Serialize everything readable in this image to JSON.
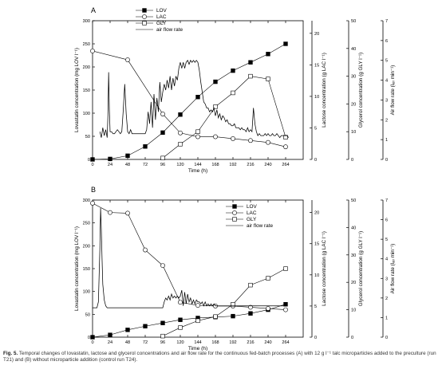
{
  "chart_data": [
    {
      "panel_label": "A",
      "type": "line",
      "xlabel": "Time (h)",
      "xlim": [
        0,
        288
      ],
      "xticks": [
        "0",
        "24",
        "48",
        "72",
        "96",
        "120",
        "144",
        "168",
        "192",
        "216",
        "240",
        "264"
      ],
      "ylabel_left": "Lovastatin concentration (mg LOV l⁻¹)",
      "ylim_left": [
        0,
        300
      ],
      "yticks_left": [
        "0",
        "50",
        "100",
        "150",
        "200",
        "250",
        "300"
      ],
      "ylabel_lac": "Lactose concentration (g LAC l⁻¹)",
      "ylim_lac": [
        0,
        22
      ],
      "yticks_lac": [
        "0",
        "5",
        "10",
        "15",
        "20"
      ],
      "ylabel_gly": "Glycerol concentration (g GLY l⁻¹)",
      "ylim_gly": [
        0,
        50
      ],
      "yticks_gly": [
        "0",
        "10",
        "20",
        "30",
        "40",
        "50"
      ],
      "ylabel_air": "Air flow rate (lₐᵢᵣ min⁻¹)",
      "ylim_air": [
        0,
        7
      ],
      "yticks_air": [
        "0",
        "1",
        "2",
        "3",
        "4",
        "5",
        "6",
        "7"
      ],
      "legend_position": "top-center",
      "series": [
        {
          "name": "LOV",
          "axis": "left",
          "marker": "filled-square",
          "x": [
            0,
            24,
            48,
            72,
            96,
            120,
            144,
            168,
            192,
            216,
            240,
            264
          ],
          "values": [
            0,
            1,
            8,
            28,
            58,
            97,
            135,
            168,
            192,
            210,
            228,
            250
          ]
        },
        {
          "name": "LAC",
          "axis": "lac",
          "marker": "open-circle",
          "x": [
            0,
            48,
            96,
            120,
            144,
            168,
            192,
            216,
            240,
            264
          ],
          "values": [
            17.2,
            15.8,
            7.2,
            4.2,
            3.6,
            3.6,
            3.3,
            3.0,
            2.7,
            2.0
          ]
        },
        {
          "name": "GLY",
          "axis": "gly",
          "marker": "open-square",
          "x": [
            96,
            120,
            144,
            168,
            192,
            216,
            240,
            264
          ],
          "values": [
            0.5,
            5.5,
            10,
            19,
            24,
            30,
            29,
            8
          ]
        },
        {
          "name": "air flow rate",
          "axis": "air",
          "marker": "line",
          "x": [
            10,
            12,
            14,
            16,
            18,
            19,
            20,
            21,
            22,
            23,
            24,
            26,
            28,
            30,
            32,
            34,
            36,
            38,
            40,
            42,
            44,
            46,
            48,
            50,
            52,
            54,
            56,
            58,
            60,
            62,
            64,
            66,
            68,
            70,
            72,
            74,
            76,
            78,
            80,
            82,
            84,
            86,
            88,
            90,
            92,
            94,
            96,
            98,
            100,
            102,
            104,
            106,
            108,
            110,
            112,
            114,
            116,
            118,
            120,
            122,
            124,
            126,
            128,
            130,
            132,
            134,
            136,
            138,
            140,
            142,
            144,
            146,
            148,
            150,
            152,
            154,
            156,
            158,
            160,
            162,
            164,
            166,
            168,
            170,
            172,
            174,
            176,
            178,
            180,
            182,
            184,
            186,
            188,
            190,
            192,
            194,
            196,
            198,
            200,
            202,
            204,
            206,
            208,
            210,
            212,
            214,
            216,
            218,
            220,
            222,
            224,
            226,
            228,
            230,
            232,
            234,
            236,
            238,
            240,
            242,
            244,
            246,
            248,
            250,
            252,
            254,
            256,
            258,
            260,
            262,
            264,
            266,
            268
          ],
          "values": [
            1.4,
            1.1,
            1.6,
            1.2,
            1.5,
            1.3,
            1.1,
            2.2,
            4.4,
            2.5,
            1.4,
            1.4,
            1.3,
            1.3,
            1.4,
            1.5,
            1.4,
            1.3,
            1.4,
            2.5,
            3.8,
            2.3,
            1.4,
            1.3,
            1.5,
            1.3,
            1.3,
            1.3,
            1.3,
            1.3,
            1.3,
            1.3,
            1.3,
            1.3,
            1.3,
            1.5,
            2.4,
            1.8,
            2.9,
            1.6,
            3.3,
            2.0,
            3.1,
            2.4,
            3.9,
            2.9,
            3.4,
            3.8,
            3.5,
            4.0,
            3.6,
            4.2,
            3.5,
            4.1,
            3.7,
            4.2,
            4.0,
            4.6,
            4.9,
            4.6,
            4.9,
            4.6,
            4.9,
            5.0,
            4.8,
            5.0,
            4.9,
            5.0,
            4.9,
            5.0,
            4.9,
            4.5,
            3.9,
            3.4,
            2.9,
            2.8,
            2.6,
            2.6,
            2.4,
            2.5,
            2.4,
            2.6,
            2.2,
            2.5,
            2.1,
            2.3,
            2.0,
            2.2,
            2.1,
            1.9,
            2.0,
            1.8,
            1.8,
            1.7,
            1.7,
            1.8,
            1.6,
            1.6,
            1.6,
            1.5,
            1.6,
            1.5,
            1.5,
            1.4,
            1.6,
            1.4,
            1.5,
            1.4,
            2.6,
            1.8,
            1.4,
            1.2,
            1.3,
            1.2,
            1.2,
            1.2,
            1.3,
            1.2,
            1.3,
            1.2,
            1.2,
            1.3,
            1.2,
            1.2,
            1.3,
            1.2,
            1.1,
            1.2,
            1.2,
            1.2,
            1.2,
            1.2,
            1.1
          ]
        }
      ]
    },
    {
      "panel_label": "B",
      "type": "line",
      "xlabel": "Time (h)",
      "xlim": [
        0,
        288
      ],
      "xticks": [
        "0",
        "24",
        "48",
        "72",
        "96",
        "120",
        "144",
        "168",
        "192",
        "216",
        "240",
        "264"
      ],
      "ylabel_left": "Lovastatin concentration (mg LOV l⁻¹)",
      "ylim_left": [
        0,
        300
      ],
      "yticks_left": [
        "0",
        "50",
        "100",
        "150",
        "200",
        "250",
        "300"
      ],
      "ylabel_lac": "Lactose concentration (g LAC l⁻¹)",
      "ylim_lac": [
        0,
        22
      ],
      "yticks_lac": [
        "0",
        "5",
        "10",
        "15",
        "20"
      ],
      "ylabel_gly": "Glycerol concentration (g GLY l⁻¹)",
      "ylim_gly": [
        0,
        50
      ],
      "yticks_gly": [
        "0",
        "10",
        "20",
        "30",
        "40",
        "50"
      ],
      "ylabel_air": "Air flow rate (lₐᵢᵣ min⁻¹)",
      "ylim_air": [
        0,
        7
      ],
      "yticks_air": [
        "0",
        "1",
        "2",
        "3",
        "4",
        "5",
        "6",
        "7"
      ],
      "legend_position": "top-right",
      "series": [
        {
          "name": "LOV",
          "axis": "left",
          "marker": "filled-square",
          "x": [
            0,
            24,
            48,
            72,
            96,
            120,
            144,
            168,
            192,
            216,
            240,
            264
          ],
          "values": [
            0,
            5,
            16,
            24,
            31,
            38,
            42,
            44,
            46,
            52,
            60,
            72
          ]
        },
        {
          "name": "LAC",
          "axis": "lac",
          "marker": "open-circle",
          "x": [
            0,
            24,
            48,
            72,
            96,
            120,
            144,
            168,
            192,
            216,
            240,
            264
          ],
          "values": [
            21.5,
            20.0,
            19.9,
            14.0,
            11.5,
            5.6,
            5.1,
            5.0,
            5.0,
            4.8,
            4.6,
            4.4
          ]
        },
        {
          "name": "GLY",
          "axis": "gly",
          "marker": "open-square",
          "x": [
            96,
            120,
            144,
            168,
            192,
            216,
            240,
            264
          ],
          "values": [
            0.4,
            3.5,
            6.0,
            7.5,
            12.0,
            19.0,
            21.5,
            25.0
          ]
        },
        {
          "name": "air flow rate",
          "axis": "air",
          "marker": "line",
          "x": [
            0,
            6,
            8,
            10,
            11,
            12,
            13,
            14,
            16,
            18,
            20,
            24,
            48,
            72,
            96,
            98,
            100,
            102,
            104,
            106,
            108,
            110,
            112,
            114,
            116,
            118,
            120,
            122,
            124,
            126,
            128,
            130,
            132,
            134,
            136,
            138,
            140,
            142,
            144,
            146,
            148,
            150,
            152,
            154,
            156,
            158,
            160,
            162,
            164,
            166,
            168,
            172,
            180,
            192,
            216,
            240,
            264
          ],
          "values": [
            1.5,
            1.5,
            1.8,
            4.5,
            6.6,
            5.5,
            4.0,
            2.7,
            1.9,
            1.6,
            1.5,
            1.5,
            1.5,
            1.5,
            1.5,
            1.8,
            2.0,
            1.9,
            2.1,
            1.9,
            2.2,
            2.0,
            2.1,
            2.0,
            2.1,
            2.0,
            2.1,
            2.4,
            1.6,
            2.3,
            1.7,
            2.2,
            1.8,
            2.0,
            1.7,
            1.9,
            1.7,
            1.9,
            1.8,
            1.8,
            1.7,
            1.8,
            1.6,
            1.8,
            1.6,
            1.7,
            1.6,
            1.7,
            1.6,
            1.7,
            1.6,
            1.6,
            1.6,
            1.6,
            1.6,
            1.6,
            1.6
          ]
        }
      ]
    }
  ],
  "caption": {
    "label": "Fig. 5.",
    "text": "Temporal changes of lovastatin, lactose and glycerol concentrations and air flow rate for the continuous fed-batch processes (A) with 12 g l⁻¹ talc microparticles added to the preculture (run T21) and (B) without microparticle addition (control run T24)."
  }
}
